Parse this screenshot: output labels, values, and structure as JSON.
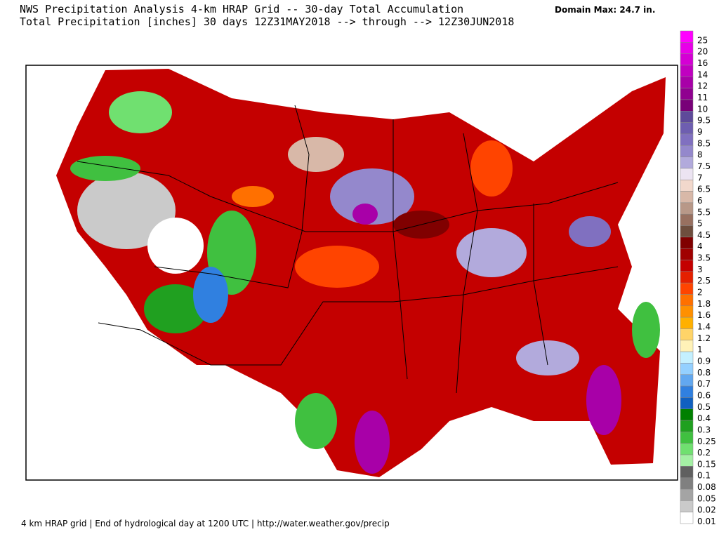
{
  "header": {
    "title": "NWS Precipitation Analysis 4-km HRAP Grid -- 30-day Total Accumulation",
    "subtitle": "Total Precipitation [inches] 30 days 12Z31MAY2018 --> through --> 12Z30JUN2018",
    "domain_max": "Domain Max: 24.7 in."
  },
  "legend": [
    {
      "label": "25",
      "color": "#ff00ff"
    },
    {
      "label": "20",
      "color": "#e800e8"
    },
    {
      "label": "16",
      "color": "#d400d4"
    },
    {
      "label": "14",
      "color": "#c000c0"
    },
    {
      "label": "12",
      "color": "#a800a8"
    },
    {
      "label": "11",
      "color": "#900090"
    },
    {
      "label": "10",
      "color": "#780078"
    },
    {
      "label": "9.5",
      "color": "#5e4a9a"
    },
    {
      "label": "9",
      "color": "#6e5eb0"
    },
    {
      "label": "8.5",
      "color": "#8070c0"
    },
    {
      "label": "8",
      "color": "#9488cc"
    },
    {
      "label": "7.5",
      "color": "#b2aadc"
    },
    {
      "label": "7",
      "color": "#ece4f2"
    },
    {
      "label": "6.5",
      "color": "#f2d8cc"
    },
    {
      "label": "6",
      "color": "#d8b8a8"
    },
    {
      "label": "5.5",
      "color": "#b89888"
    },
    {
      "label": "5",
      "color": "#987060"
    },
    {
      "label": "4.5",
      "color": "#6e4e3e"
    },
    {
      "label": "4",
      "color": "#800000"
    },
    {
      "label": "3.5",
      "color": "#a00000"
    },
    {
      "label": "3",
      "color": "#c40000"
    },
    {
      "label": "2.5",
      "color": "#e42000"
    },
    {
      "label": "2",
      "color": "#ff4400"
    },
    {
      "label": "1.8",
      "color": "#ff7000"
    },
    {
      "label": "1.6",
      "color": "#ff9000"
    },
    {
      "label": "1.4",
      "color": "#ffb000"
    },
    {
      "label": "1.2",
      "color": "#ffd468"
    },
    {
      "label": "1",
      "color": "#fff2b8"
    },
    {
      "label": "0.9",
      "color": "#c4f0ff"
    },
    {
      "label": "0.8",
      "color": "#94d0ff"
    },
    {
      "label": "0.7",
      "color": "#62a8f0"
    },
    {
      "label": "0.6",
      "color": "#3080e0"
    },
    {
      "label": "0.5",
      "color": "#1060c0"
    },
    {
      "label": "0.4",
      "color": "#008000"
    },
    {
      "label": "0.3",
      "color": "#20a020"
    },
    {
      "label": "0.25",
      "color": "#40c040"
    },
    {
      "label": "0.2",
      "color": "#70e070"
    },
    {
      "label": "0.15",
      "color": "#a4f0a4"
    },
    {
      "label": "0.1",
      "color": "#606060"
    },
    {
      "label": "0.08",
      "color": "#808080"
    },
    {
      "label": "0.05",
      "color": "#a4a4a4"
    },
    {
      "label": "0.02",
      "color": "#cacaca"
    },
    {
      "label": "0.01",
      "color": "#ffffff"
    }
  ],
  "footer": "4 km HRAP grid | End of hydrological day at 1200 UTC | http://water.weather.gov/precip"
}
